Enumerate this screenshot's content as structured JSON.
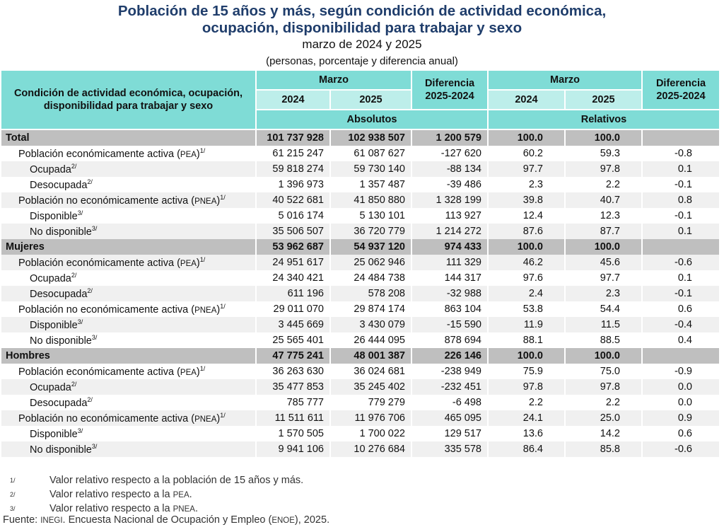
{
  "title_line1": "Población de 15 años y más, según condición de actividad económica,",
  "title_line2": "ocupación, disponibilidad para trabajar y sexo",
  "subtitle": "marzo de 2024 y 2025",
  "units": "(personas, porcentaje y diferencia anual)",
  "header": {
    "label": "Condición de actividad económica, ocupación, disponibilidad para trabajar y sexo",
    "marzo": "Marzo",
    "y2024": "2024",
    "y2025": "2025",
    "diff": "Diferencia 2025-2024",
    "absolutos": "Absolutos",
    "relativos": "Relativos"
  },
  "colors": {
    "header": "#7fdcd6",
    "header_light": "#bdeeea",
    "section": "#bfbfbf",
    "title": "#1f3d6b"
  },
  "rows": [
    {
      "label": "Total",
      "sup": "",
      "level": 0,
      "abs2024": "101 737 928",
      "abs2025": "102 938 507",
      "absdiff": "1 200 579",
      "rel2024": "100.0",
      "rel2025": "100.0",
      "reldiff": ""
    },
    {
      "label": "Población económicamente activa (",
      "abbr": "PEA",
      "close": ")",
      "sup": "1/",
      "level": 1,
      "abs2024": "61 215 247",
      "abs2025": "61 087 627",
      "absdiff": "-127 620",
      "rel2024": "60.2",
      "rel2025": "59.3",
      "reldiff": "-0.8"
    },
    {
      "label": "Ocupada",
      "sup": "2/",
      "level": 2,
      "abs2024": "59 818 274",
      "abs2025": "59 730 140",
      "absdiff": "-88 134",
      "rel2024": "97.7",
      "rel2025": "97.8",
      "reldiff": "0.1"
    },
    {
      "label": "Desocupada",
      "sup": "2/",
      "level": 2,
      "abs2024": "1 396 973",
      "abs2025": "1 357 487",
      "absdiff": "-39 486",
      "rel2024": "2.3",
      "rel2025": "2.2",
      "reldiff": "-0.1"
    },
    {
      "label": "Población no económicamente activa (",
      "abbr": "PNEA",
      "close": ")",
      "sup": "1/",
      "level": 1,
      "abs2024": "40 522 681",
      "abs2025": "41 850 880",
      "absdiff": "1 328 199",
      "rel2024": "39.8",
      "rel2025": "40.7",
      "reldiff": "0.8"
    },
    {
      "label": "Disponible",
      "sup": "3/",
      "level": 2,
      "abs2024": "5 016 174",
      "abs2025": "5 130 101",
      "absdiff": "113 927",
      "rel2024": "12.4",
      "rel2025": "12.3",
      "reldiff": "-0.1"
    },
    {
      "label": "No disponible",
      "sup": "3/",
      "level": 2,
      "abs2024": "35 506 507",
      "abs2025": "36 720 779",
      "absdiff": "1 214 272",
      "rel2024": "87.6",
      "rel2025": "87.7",
      "reldiff": "0.1"
    },
    {
      "label": "Mujeres",
      "sup": "",
      "level": 0,
      "abs2024": "53 962 687",
      "abs2025": "54 937 120",
      "absdiff": "974 433",
      "rel2024": "100.0",
      "rel2025": "100.0",
      "reldiff": ""
    },
    {
      "label": "Población económicamente activa (",
      "abbr": "PEA",
      "close": ")",
      "sup": "1/",
      "level": 1,
      "abs2024": "24 951 617",
      "abs2025": "25 062 946",
      "absdiff": "111 329",
      "rel2024": "46.2",
      "rel2025": "45.6",
      "reldiff": "-0.6"
    },
    {
      "label": "Ocupada",
      "sup": "2/",
      "level": 2,
      "abs2024": "24 340 421",
      "abs2025": "24 484 738",
      "absdiff": "144 317",
      "rel2024": "97.6",
      "rel2025": "97.7",
      "reldiff": "0.1"
    },
    {
      "label": "Desocupada",
      "sup": "2/",
      "level": 2,
      "abs2024": "611 196",
      "abs2025": "578 208",
      "absdiff": "-32 988",
      "rel2024": "2.4",
      "rel2025": "2.3",
      "reldiff": "-0.1"
    },
    {
      "label": "Población no económicamente activa (",
      "abbr": "PNEA",
      "close": ")",
      "sup": "1/",
      "level": 1,
      "abs2024": "29 011 070",
      "abs2025": "29 874 174",
      "absdiff": "863 104",
      "rel2024": "53.8",
      "rel2025": "54.4",
      "reldiff": "0.6"
    },
    {
      "label": "Disponible",
      "sup": "3/",
      "level": 2,
      "abs2024": "3 445 669",
      "abs2025": "3 430 079",
      "absdiff": "-15 590",
      "rel2024": "11.9",
      "rel2025": "11.5",
      "reldiff": "-0.4"
    },
    {
      "label": "No disponible",
      "sup": "3/",
      "level": 2,
      "abs2024": "25 565 401",
      "abs2025": "26 444 095",
      "absdiff": "878 694",
      "rel2024": "88.1",
      "rel2025": "88.5",
      "reldiff": "0.4"
    },
    {
      "label": "Hombres",
      "sup": "",
      "level": 0,
      "abs2024": "47 775 241",
      "abs2025": "48 001 387",
      "absdiff": "226 146",
      "rel2024": "100.0",
      "rel2025": "100.0",
      "reldiff": ""
    },
    {
      "label": "Población económicamente activa (",
      "abbr": "PEA",
      "close": ")",
      "sup": "1/",
      "level": 1,
      "abs2024": "36 263 630",
      "abs2025": "36 024 681",
      "absdiff": "-238 949",
      "rel2024": "75.9",
      "rel2025": "75.0",
      "reldiff": "-0.9"
    },
    {
      "label": "Ocupada",
      "sup": "2/",
      "level": 2,
      "abs2024": "35 477 853",
      "abs2025": "35 245 402",
      "absdiff": "-232 451",
      "rel2024": "97.8",
      "rel2025": "97.8",
      "reldiff": "0.0"
    },
    {
      "label": "Desocupada",
      "sup": "2/",
      "level": 2,
      "abs2024": "785 777",
      "abs2025": "779 279",
      "absdiff": "-6 498",
      "rel2024": "2.2",
      "rel2025": "2.2",
      "reldiff": "0.0"
    },
    {
      "label": "Población no económicamente activa (",
      "abbr": "PNEA",
      "close": ")",
      "sup": "1/",
      "level": 1,
      "abs2024": "11 511 611",
      "abs2025": "11 976 706",
      "absdiff": "465 095",
      "rel2024": "24.1",
      "rel2025": "25.0",
      "reldiff": "0.9"
    },
    {
      "label": "Disponible",
      "sup": "3/",
      "level": 2,
      "abs2024": "1 570 505",
      "abs2025": "1 700 022",
      "absdiff": "129 517",
      "rel2024": "13.6",
      "rel2025": "14.2",
      "reldiff": "0.6"
    },
    {
      "label": "No disponible",
      "sup": "3/",
      "level": 2,
      "abs2024": "9 941 106",
      "abs2025": "10 276 684",
      "absdiff": "335 578",
      "rel2024": "86.4",
      "rel2025": "85.8",
      "reldiff": "-0.6"
    }
  ],
  "notes": [
    {
      "mark": "1/",
      "text": "Valor relativo respecto a la población de 15 años y más.",
      "abbr": "",
      "tail": ""
    },
    {
      "mark": "2/",
      "text": "Valor relativo respecto a la ",
      "abbr": "PEA",
      "tail": "."
    },
    {
      "mark": "3/",
      "text": "Valor relativo respecto a la ",
      "abbr": "PNEA",
      "tail": "."
    }
  ],
  "source": {
    "prefix": "Fuente: ",
    "org": "INEGI",
    "mid": ". Encuesta Nacional de Ocupación y Empleo (",
    "abbr": "ENOE",
    "tail": "), 2025."
  }
}
